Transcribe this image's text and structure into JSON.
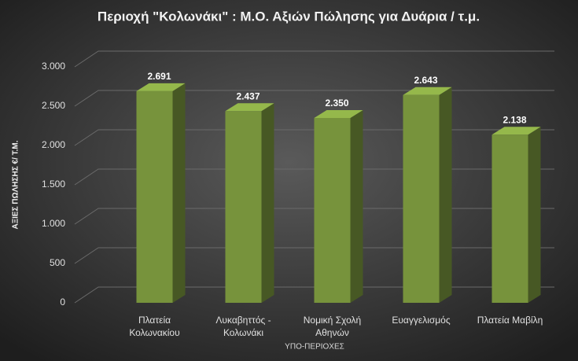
{
  "chart_data": {
    "type": "bar",
    "title": "Περιοχή \"Κολωνάκι\" : Μ.Ο. Αξιών Πώλησης για Δυάρια / τ.μ.",
    "y_label": "ΑΞΙΕΣ ΠΩΛΗΣΗΣ €/ Τ.Μ.",
    "x_label": "ΥΠΟ-ΠΕΡΙΟΧΕΣ",
    "categories": [
      "Πλατεία\nΚολωνακίου",
      "Λυκαβηττός -\nΚολωνάκι",
      "Νομική Σχολή\nΑθηνών",
      "Ευαγγελισμός",
      "Πλατεία Μαβίλη"
    ],
    "values": [
      2691,
      2437,
      2350,
      2643,
      2138
    ],
    "value_labels": [
      "2.691",
      "2.437",
      "2.350",
      "2.643",
      "2.138"
    ],
    "color": "#77933c",
    "ylim": [
      0,
      3000
    ],
    "yticks": [
      0,
      500,
      {
        "value": 1000,
        "label": "1.000"
      },
      {
        "value": 1500,
        "label": "1.500"
      },
      {
        "value": 2000,
        "label": "2.000"
      },
      {
        "value": 2500,
        "label": "2.500"
      },
      {
        "value": 3000,
        "label": "3.000"
      }
    ],
    "grid": true
  }
}
